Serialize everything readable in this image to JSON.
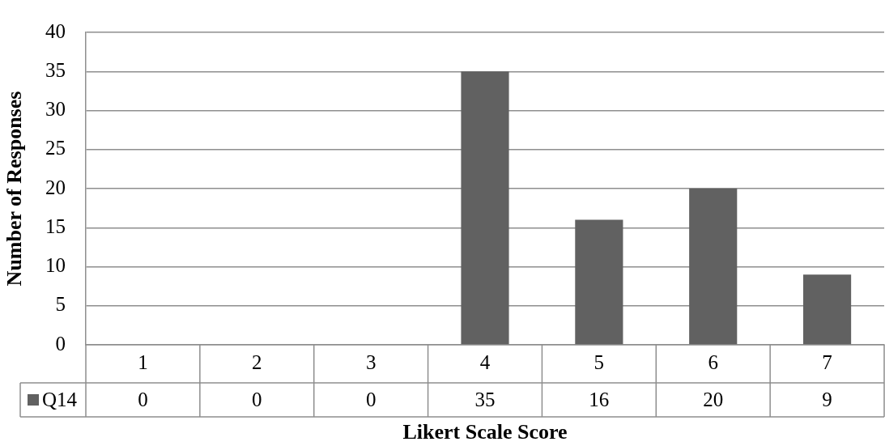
{
  "chart_data": {
    "type": "bar",
    "xlabel": "Likert Scale Score",
    "ylabel": "Number of Responses",
    "categories": [
      "1",
      "2",
      "3",
      "4",
      "5",
      "6",
      "7"
    ],
    "series": [
      {
        "name": "Q14",
        "color": "#616161",
        "values": [
          0,
          0,
          0,
          35,
          16,
          20,
          9
        ]
      }
    ],
    "ylim": [
      0,
      40
    ],
    "yticks": [
      0,
      5,
      10,
      15,
      20,
      25,
      30,
      35,
      40
    ],
    "grid": "y",
    "data_labels": true,
    "legend": "bottom left"
  }
}
